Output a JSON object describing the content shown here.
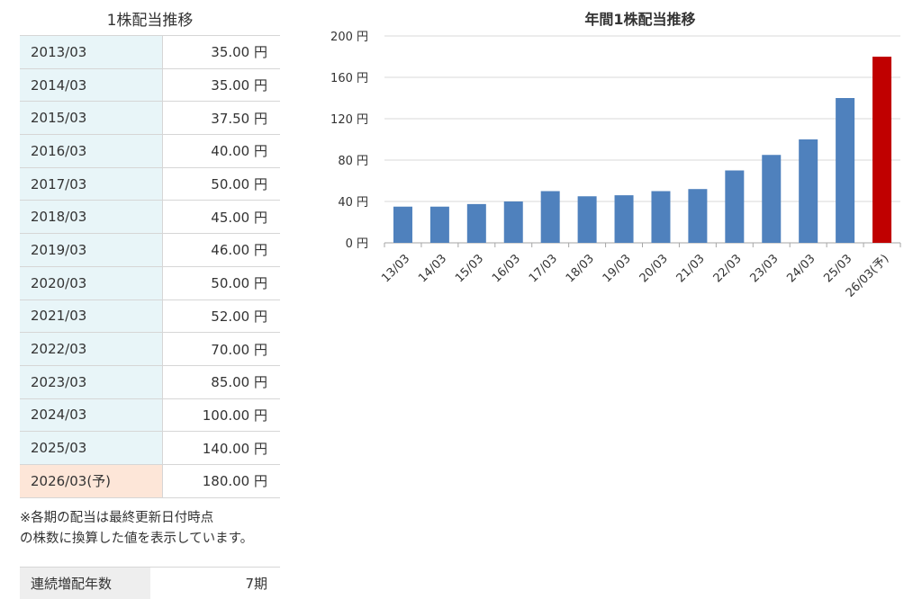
{
  "table": {
    "title": "1株配当推移",
    "rows": [
      {
        "period": "2013/03",
        "value": "35.00 円",
        "forecast": false
      },
      {
        "period": "2014/03",
        "value": "35.00 円",
        "forecast": false
      },
      {
        "period": "2015/03",
        "value": "37.50 円",
        "forecast": false
      },
      {
        "period": "2016/03",
        "value": "40.00 円",
        "forecast": false
      },
      {
        "period": "2017/03",
        "value": "50.00 円",
        "forecast": false
      },
      {
        "period": "2018/03",
        "value": "45.00 円",
        "forecast": false
      },
      {
        "period": "2019/03",
        "value": "46.00 円",
        "forecast": false
      },
      {
        "period": "2020/03",
        "value": "50.00 円",
        "forecast": false
      },
      {
        "period": "2021/03",
        "value": "52.00 円",
        "forecast": false
      },
      {
        "period": "2022/03",
        "value": "70.00 円",
        "forecast": false
      },
      {
        "period": "2023/03",
        "value": "85.00 円",
        "forecast": false
      },
      {
        "period": "2024/03",
        "value": "100.00 円",
        "forecast": false
      },
      {
        "period": "2025/03",
        "value": "140.00 円",
        "forecast": false
      },
      {
        "period": "2026/03(予)",
        "value": "180.00 円",
        "forecast": true
      }
    ],
    "note_line1": "※各期の配当は最終更新日付時点",
    "note_line2": "の株数に換算した値を表示しています。",
    "streak_label": "連続増配年数",
    "streak_value": "7期"
  },
  "colors": {
    "bar": "#4f81bd",
    "bar_forecast": "#c00000",
    "grid": "#d9d9d9",
    "period_bg": "#e8f5f8",
    "forecast_bg": "#fde6d8"
  },
  "chart_data": {
    "type": "bar",
    "title": "年間1株配当推移",
    "categories": [
      "13/03",
      "14/03",
      "15/03",
      "16/03",
      "17/03",
      "18/03",
      "19/03",
      "20/03",
      "21/03",
      "22/03",
      "23/03",
      "24/03",
      "25/03",
      "26/03(予)"
    ],
    "values": [
      35,
      35,
      37.5,
      40,
      50,
      45,
      46,
      50,
      52,
      70,
      85,
      100,
      140,
      180
    ],
    "highlight_index": 13,
    "ylim": [
      0,
      200
    ],
    "yticks": [
      0,
      40,
      80,
      120,
      160,
      200
    ],
    "ytick_suffix": " 円",
    "xlabel": "",
    "ylabel": "",
    "grid": true,
    "legend": "none"
  }
}
